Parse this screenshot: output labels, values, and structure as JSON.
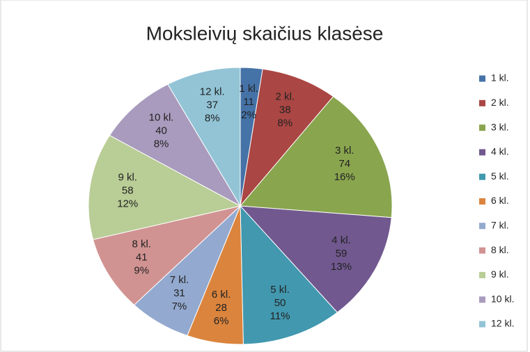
{
  "chart_data": {
    "type": "pie",
    "title": "Moksleivių skaičius klasėse",
    "categories": [
      "1 kl.",
      "2 kl.",
      "3 kl.",
      "4 kl.",
      "5 kl.",
      "6 kl.",
      "7 kl.",
      "8 kl.",
      "9 kl.",
      "10 kl.",
      "12 kl."
    ],
    "values": [
      11,
      38,
      74,
      59,
      50,
      28,
      31,
      41,
      58,
      40,
      37
    ],
    "percent_labels": [
      "2%",
      "8%",
      "16%",
      "13%",
      "11%",
      "6%",
      "7%",
      "9%",
      "12%",
      "8%",
      "8%"
    ],
    "colors": [
      "#4572a7",
      "#aa4643",
      "#89a54e",
      "#71588f",
      "#4198af",
      "#db843d",
      "#93a9cf",
      "#d19392",
      "#b9cd96",
      "#a99bbd",
      "#92c4d6"
    ],
    "legend": "right"
  }
}
